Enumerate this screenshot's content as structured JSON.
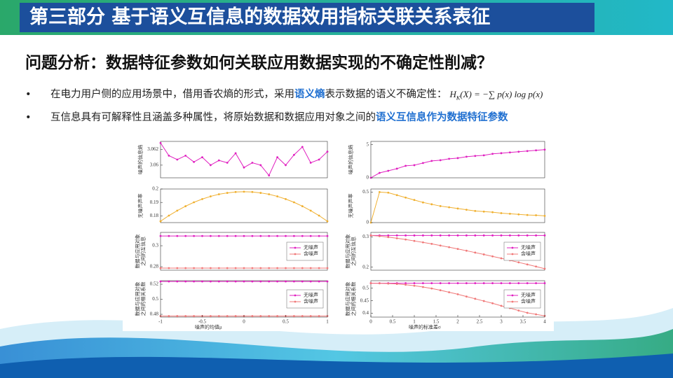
{
  "header": {
    "title": "第三部分  基于语义互信息的数据效用指标关联关系表征"
  },
  "subtitle": "问题分析：数据特征参数如何关联应用数据实现的不确定性削减？",
  "bullets": [
    {
      "marker": "•",
      "parts": [
        "在电力用户侧的应用场景中，借用香农熵的形式，采用",
        "语义熵",
        "表示数据的语义不确定性："
      ],
      "formula": {
        "lhs": "H",
        "sub": "K",
        "rhs": "(X) = −∑ p(x) log p(x)"
      }
    },
    {
      "marker": "•",
      "parts": [
        "互信息具有可解释性且涵盖多种属性，将原始数据和数据应用对象之间的",
        "语义互信息作为数据特征参数"
      ]
    }
  ],
  "chart_data": [
    {
      "type": "line",
      "ylabel": [
        "噪声的信息熵"
      ],
      "x": [
        -1,
        -0.9,
        -0.8,
        -0.7,
        -0.6,
        -0.5,
        -0.4,
        -0.3,
        -0.2,
        -0.1,
        0,
        0.1,
        0.2,
        0.3,
        0.4,
        0.5,
        0.6,
        0.7,
        0.8,
        0.9,
        1
      ],
      "xlim": [
        -1,
        1
      ],
      "ylim": [
        3.0584,
        3.063
      ],
      "yticks": [
        3.06,
        3.062
      ],
      "series": [
        {
          "color": "#e020c0",
          "values": [
            3.0628,
            3.0612,
            3.0607,
            3.0612,
            3.0604,
            3.061,
            3.06,
            3.0606,
            3.0603,
            3.0615,
            3.0597,
            3.0603,
            3.06,
            3.0587,
            3.061,
            3.06,
            3.0613,
            3.0623,
            3.0603,
            3.0607,
            3.0617
          ]
        }
      ]
    },
    {
      "type": "line",
      "ylabel": [
        "噪声的信息熵"
      ],
      "x": [
        0,
        0.2,
        0.4,
        0.6,
        0.8,
        1,
        1.2,
        1.4,
        1.6,
        1.8,
        2,
        2.2,
        2.4,
        2.6,
        2.8,
        3,
        3.2,
        3.4,
        3.6,
        3.8,
        4
      ],
      "xlim": [
        0,
        4
      ],
      "ylim": [
        0,
        5.5
      ],
      "yticks": [
        0,
        5
      ],
      "series": [
        {
          "color": "#e020c0",
          "values": [
            0,
            0.74,
            1.06,
            1.38,
            1.81,
            1.91,
            2.23,
            2.55,
            2.66,
            2.87,
            2.98,
            3.19,
            3.3,
            3.4,
            3.62,
            3.72,
            3.83,
            3.94,
            4.04,
            4.15,
            4.26
          ]
        }
      ]
    },
    {
      "type": "line",
      "ylabel": [
        "无噪声声率"
      ],
      "x": [
        -1,
        -0.9,
        -0.8,
        -0.7,
        -0.6,
        -0.5,
        -0.4,
        -0.3,
        -0.2,
        -0.1,
        0,
        0.1,
        0.2,
        0.3,
        0.4,
        0.5,
        0.6,
        0.7,
        0.8,
        0.9,
        1
      ],
      "xlim": [
        -1,
        1
      ],
      "ylim": [
        0.175,
        0.2
      ],
      "yticks": [
        0.18,
        0.19,
        0.2
      ],
      "series": [
        {
          "color": "#f0b030",
          "values": [
            0.176,
            0.1802,
            0.1839,
            0.1872,
            0.1901,
            0.1925,
            0.1945,
            0.1961,
            0.1971,
            0.1978,
            0.198,
            0.1978,
            0.1971,
            0.1961,
            0.1945,
            0.1925,
            0.1901,
            0.1872,
            0.1839,
            0.1802,
            0.176
          ]
        }
      ]
    },
    {
      "type": "line",
      "ylabel": [
        "无噪声声率"
      ],
      "x": [
        0,
        0.2,
        0.4,
        0.6,
        0.8,
        1,
        1.2,
        1.4,
        1.6,
        1.8,
        2,
        2.2,
        2.4,
        2.6,
        2.8,
        3,
        3.2,
        3.4,
        3.6,
        3.8,
        4
      ],
      "xlim": [
        0,
        4
      ],
      "ylim": [
        0,
        0.55
      ],
      "yticks": [
        0,
        0.5
      ],
      "series": [
        {
          "color": "#f0b030",
          "values": [
            0,
            0.5,
            0.49,
            0.45,
            0.41,
            0.37,
            0.33,
            0.3,
            0.27,
            0.25,
            0.23,
            0.21,
            0.19,
            0.18,
            0.17,
            0.155,
            0.145,
            0.135,
            0.125,
            0.12,
            0.11
          ]
        }
      ]
    },
    {
      "type": "line",
      "ylabel": [
        "数据与应用对象",
        "之间的互信息"
      ],
      "x": [
        -1,
        -0.9,
        -0.8,
        -0.7,
        -0.6,
        -0.5,
        -0.4,
        -0.3,
        -0.2,
        -0.1,
        0,
        0.1,
        0.2,
        0.3,
        0.4,
        0.5,
        0.6,
        0.7,
        0.8,
        0.9,
        1
      ],
      "xlim": [
        -1,
        1
      ],
      "ylim": [
        0.2767,
        0.3127
      ],
      "yticks": [
        0.28,
        0.3
      ],
      "legend": "right",
      "series": [
        {
          "name": "无噪声",
          "color": "#e020c0",
          "values": [
            0.3093,
            0.3093,
            0.3093,
            0.3093,
            0.3093,
            0.3093,
            0.3093,
            0.3093,
            0.3093,
            0.3093,
            0.3093,
            0.3093,
            0.3093,
            0.3093,
            0.3093,
            0.3093,
            0.3093,
            0.3093,
            0.3093,
            0.3093,
            0.3093
          ]
        },
        {
          "name": "含噪声",
          "color": "#f07878",
          "values": [
            0.2787,
            0.2787,
            0.2787,
            0.2787,
            0.2787,
            0.2787,
            0.2787,
            0.2787,
            0.2787,
            0.2787,
            0.2787,
            0.2787,
            0.2787,
            0.2787,
            0.2787,
            0.2787,
            0.2787,
            0.2787,
            0.2787,
            0.2787,
            0.2787
          ]
        }
      ]
    },
    {
      "type": "line",
      "ylabel": [
        "数据与应用对象",
        "之间的互信息"
      ],
      "x": [
        0,
        0.2,
        0.4,
        0.6,
        0.8,
        1,
        1.2,
        1.4,
        1.6,
        1.8,
        2,
        2.2,
        2.4,
        2.6,
        2.8,
        3,
        3.2,
        3.4,
        3.6,
        3.8,
        4
      ],
      "xlim": [
        0,
        4
      ],
      "ylim": [
        0.19,
        0.315
      ],
      "yticks": [
        0.2,
        0.3
      ],
      "legend": "right",
      "series": [
        {
          "name": "无噪声",
          "color": "#e020c0",
          "values": [
            0.305,
            0.305,
            0.305,
            0.305,
            0.305,
            0.305,
            0.305,
            0.305,
            0.305,
            0.305,
            0.305,
            0.305,
            0.305,
            0.305,
            0.305,
            0.305,
            0.305,
            0.305,
            0.305,
            0.305,
            0.305
          ]
        },
        {
          "name": "含噪声",
          "color": "#f07878",
          "values": [
            0.305,
            0.3027,
            0.2995,
            0.2956,
            0.2915,
            0.2868,
            0.282,
            0.277,
            0.2716,
            0.266,
            0.2603,
            0.2544,
            0.2483,
            0.2422,
            0.2358,
            0.2293,
            0.2227,
            0.2159,
            0.2091,
            0.2021,
            0.195
          ]
        }
      ]
    },
    {
      "type": "line",
      "ylabel": [
        "数据与应用对象",
        "之间的相关系数"
      ],
      "xlabel": "噪声的均值μ",
      "x": [
        -1,
        -0.9,
        -0.8,
        -0.7,
        -0.6,
        -0.5,
        -0.4,
        -0.3,
        -0.2,
        -0.1,
        0,
        0.1,
        0.2,
        0.3,
        0.4,
        0.5,
        0.6,
        0.7,
        0.8,
        0.9,
        1
      ],
      "xlim": [
        -1,
        1
      ],
      "ylim": [
        0.4763,
        0.5247
      ],
      "xticks": [
        -1,
        -0.5,
        0,
        0.5,
        1
      ],
      "yticks": [
        0.48,
        0.5,
        0.52
      ],
      "legend": "right",
      "series": [
        {
          "name": "无噪声",
          "color": "#e020c0",
          "values": [
            0.5237,
            0.5237,
            0.5237,
            0.5237,
            0.5237,
            0.5237,
            0.5237,
            0.5237,
            0.5237,
            0.5237,
            0.5237,
            0.5237,
            0.5237,
            0.5237,
            0.5237,
            0.5237,
            0.5237,
            0.5237,
            0.5237,
            0.5237,
            0.5237
          ]
        },
        {
          "name": "含噪声",
          "color": "#f07878",
          "values": [
            0.4777,
            0.4777,
            0.4777,
            0.4777,
            0.4777,
            0.4777,
            0.4777,
            0.4777,
            0.4777,
            0.4777,
            0.4777,
            0.4777,
            0.4777,
            0.4777,
            0.4777,
            0.4777,
            0.4777,
            0.4777,
            0.4777,
            0.4777,
            0.4777
          ]
        }
      ]
    },
    {
      "type": "line",
      "ylabel": [
        "数据与应用对象",
        "之间的相关系数"
      ],
      "xlabel": "噪声的标准差σ",
      "x": [
        0,
        0.2,
        0.4,
        0.6,
        0.8,
        1,
        1.2,
        1.4,
        1.6,
        1.8,
        2,
        2.2,
        2.4,
        2.6,
        2.8,
        3,
        3.2,
        3.4,
        3.6,
        3.8,
        4
      ],
      "xlim": [
        0,
        4
      ],
      "ylim": [
        0.385,
        0.53
      ],
      "xticks": [
        0,
        0.5,
        1,
        1.5,
        2,
        2.5,
        3,
        3.5,
        4
      ],
      "yticks": [
        0.4,
        0.45,
        0.5
      ],
      "legend": "right",
      "series": [
        {
          "name": "无噪声",
          "color": "#e020c0",
          "values": [
            0.52,
            0.52,
            0.52,
            0.52,
            0.52,
            0.52,
            0.52,
            0.52,
            0.52,
            0.52,
            0.52,
            0.52,
            0.52,
            0.52,
            0.52,
            0.52,
            0.52,
            0.52,
            0.52,
            0.52,
            0.52
          ]
        },
        {
          "name": "含噪声",
          "color": "#f07878",
          "values": [
            0.52,
            0.5195,
            0.5185,
            0.517,
            0.514,
            0.51,
            0.505,
            0.499,
            0.492,
            0.484,
            0.476,
            0.467,
            0.458,
            0.449,
            0.44,
            0.43,
            0.421,
            0.411,
            0.402,
            0.396,
            0.39
          ]
        }
      ]
    }
  ]
}
